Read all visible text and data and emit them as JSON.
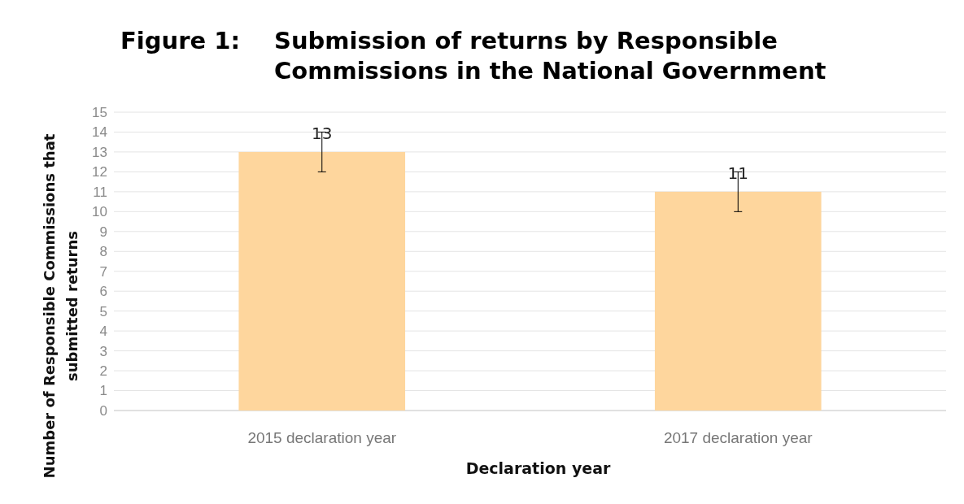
{
  "chart_data": {
    "type": "bar",
    "title": "Figure 1: Submission of returns by Responsible Commissions in the National Government",
    "xlabel": "Declaration year",
    "ylabel": "Number of Responsible Commissions that submitted returns",
    "categories": [
      "2015 declaration year",
      "2017 declaration year"
    ],
    "values": [
      13,
      11
    ],
    "errors": [
      1,
      1
    ],
    "color": "#fed69d",
    "ylim": [
      0,
      15
    ],
    "yticks": [
      0,
      1,
      2,
      3,
      4,
      5,
      6,
      7,
      8,
      9,
      10,
      11,
      12,
      13,
      14,
      15
    ],
    "grid": "y",
    "data_labels": true
  }
}
